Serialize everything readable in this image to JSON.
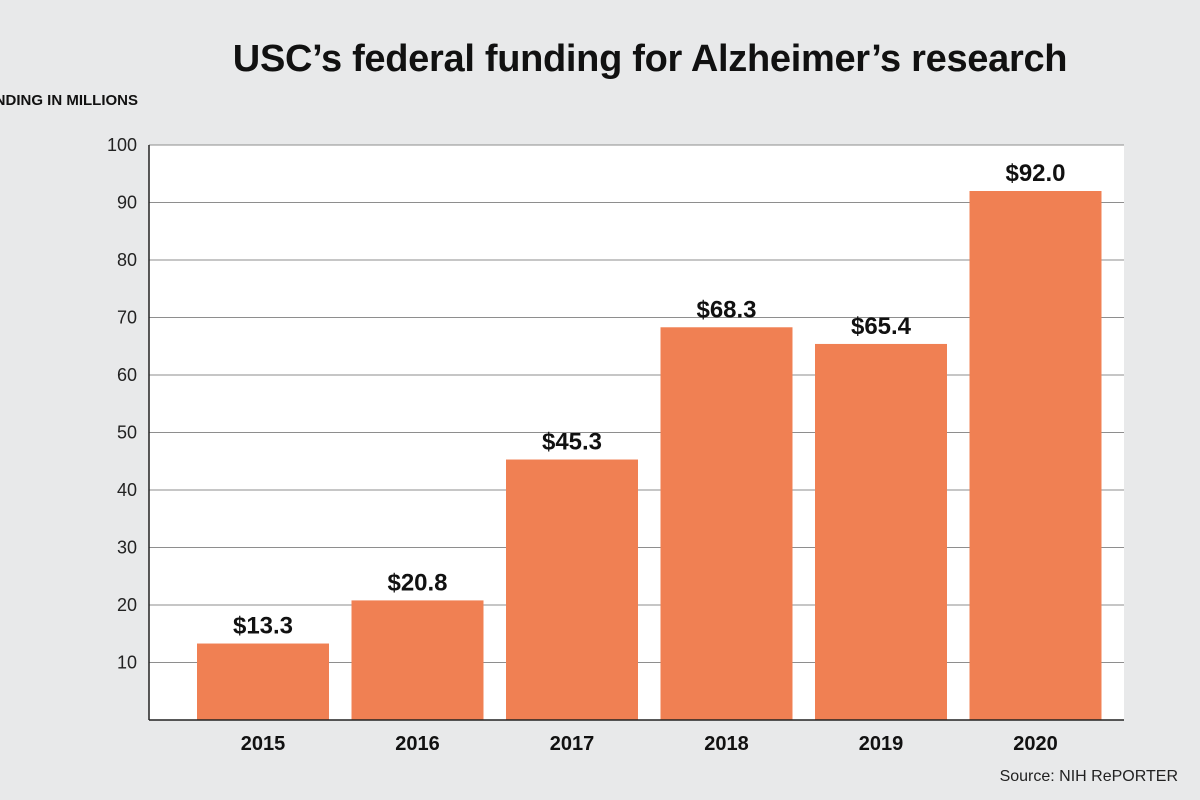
{
  "chart_data": {
    "type": "bar",
    "title": "USC’s federal funding for Alzheimer’s research",
    "ylabel": "FUNDING IN MILLIONS",
    "xlabel": "",
    "categories": [
      "2015",
      "2016",
      "2017",
      "2018",
      "2019",
      "2020"
    ],
    "values": [
      13.3,
      20.8,
      45.3,
      68.3,
      65.4,
      92.0
    ],
    "value_labels": [
      "$13.3",
      "$20.8",
      "$45.3",
      "$68.3",
      "$65.4",
      "$92.0"
    ],
    "ylim": [
      0,
      100
    ],
    "yticks": [
      "10",
      "20",
      "30",
      "40",
      "50",
      "60",
      "70",
      "80",
      "90",
      "100"
    ],
    "grid": true,
    "bar_color": "#f08053",
    "plot_background": "#ffffff",
    "page_background": "#e8e9ea",
    "source": "Source: NIH RePORTER"
  }
}
